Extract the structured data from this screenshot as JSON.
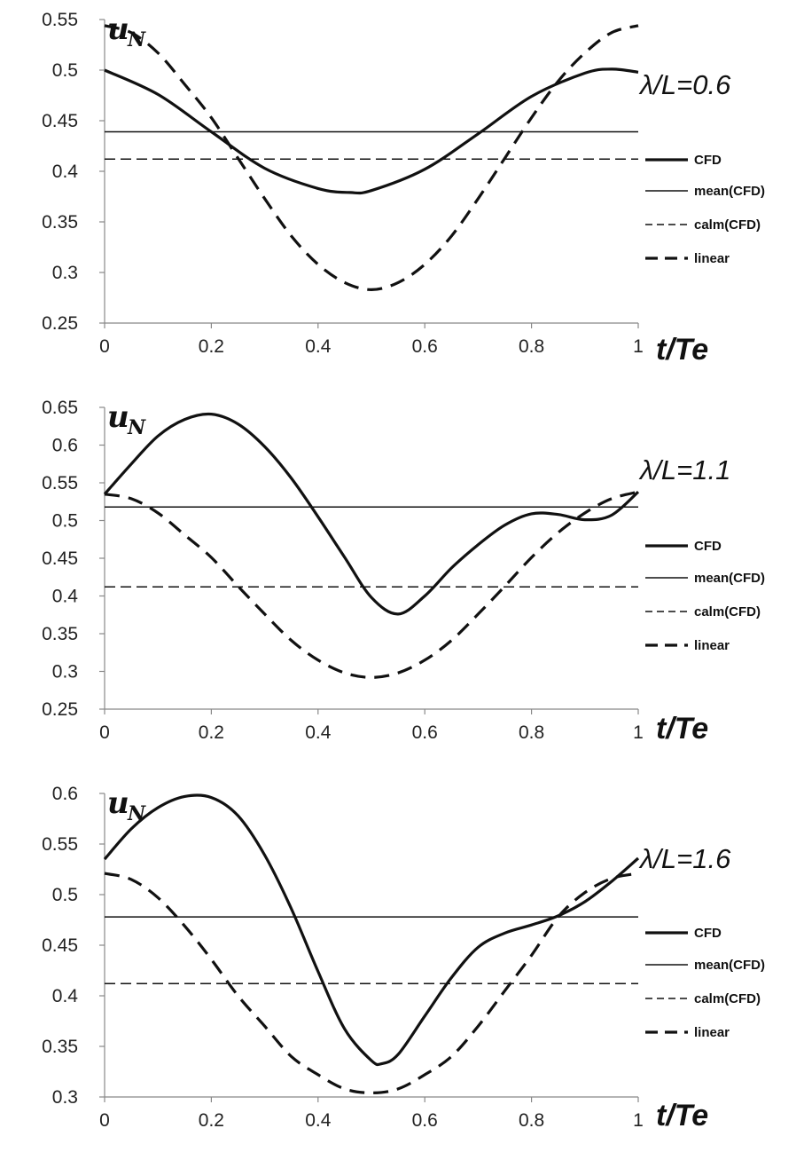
{
  "chart_data": [
    {
      "type": "line",
      "ylabel": "u",
      "ylabel_sub": "N",
      "xlabel": "t/Te",
      "annotation": "λ/L=0.6",
      "xlim": [
        0,
        1
      ],
      "ylim": [
        0.25,
        0.55
      ],
      "xticks": [
        "0",
        "0.2",
        "0.4",
        "0.6",
        "0.8",
        "1"
      ],
      "yticks": [
        "0.25",
        "0.3",
        "0.35",
        "0.4",
        "0.45",
        "0.5",
        "0.55"
      ],
      "grid": false,
      "legend_position": "right",
      "series": [
        {
          "name": "CFD",
          "style": "thick-solid",
          "x": [
            0,
            0.1,
            0.2,
            0.3,
            0.4,
            0.46,
            0.5,
            0.6,
            0.7,
            0.8,
            0.9,
            0.95,
            1.0
          ],
          "y": [
            0.5,
            0.476,
            0.439,
            0.403,
            0.383,
            0.379,
            0.381,
            0.402,
            0.437,
            0.474,
            0.497,
            0.501,
            0.498
          ]
        },
        {
          "name": "mean(CFD)",
          "style": "thin-solid",
          "x": [
            0,
            1
          ],
          "y": [
            0.439,
            0.439
          ]
        },
        {
          "name": "calm(CFD)",
          "style": "thin-dashed",
          "x": [
            0,
            1
          ],
          "y": [
            0.412,
            0.412
          ]
        },
        {
          "name": "linear",
          "style": "thick-dashed",
          "x": [
            0,
            0.05,
            0.1,
            0.15,
            0.2,
            0.25,
            0.3,
            0.35,
            0.4,
            0.45,
            0.5,
            0.55,
            0.6,
            0.65,
            0.7,
            0.75,
            0.8,
            0.85,
            0.9,
            0.95,
            1.0
          ],
          "y": [
            0.544,
            0.537,
            0.517,
            0.486,
            0.453,
            0.413,
            0.373,
            0.336,
            0.308,
            0.29,
            0.283,
            0.29,
            0.308,
            0.336,
            0.373,
            0.413,
            0.453,
            0.489,
            0.517,
            0.537,
            0.544
          ]
        }
      ]
    },
    {
      "type": "line",
      "ylabel": "u",
      "ylabel_sub": "N",
      "xlabel": "t/Te",
      "annotation": "λ/L=1.1",
      "xlim": [
        0,
        1
      ],
      "ylim": [
        0.25,
        0.65
      ],
      "xticks": [
        "0",
        "0.2",
        "0.4",
        "0.6",
        "0.8",
        "1"
      ],
      "yticks": [
        "0.25",
        "0.3",
        "0.35",
        "0.4",
        "0.45",
        "0.5",
        "0.55",
        "0.6",
        "0.65"
      ],
      "grid": false,
      "legend_position": "right",
      "series": [
        {
          "name": "CFD",
          "style": "thick-solid",
          "x": [
            0,
            0.05,
            0.1,
            0.15,
            0.2,
            0.25,
            0.3,
            0.35,
            0.4,
            0.45,
            0.5,
            0.55,
            0.6,
            0.65,
            0.7,
            0.75,
            0.8,
            0.85,
            0.9,
            0.95,
            1.0
          ],
          "y": [
            0.535,
            0.575,
            0.612,
            0.634,
            0.641,
            0.628,
            0.598,
            0.556,
            0.505,
            0.451,
            0.398,
            0.376,
            0.4,
            0.437,
            0.468,
            0.494,
            0.509,
            0.508,
            0.501,
            0.507,
            0.538
          ]
        },
        {
          "name": "mean(CFD)",
          "style": "thin-solid",
          "x": [
            0,
            1
          ],
          "y": [
            0.518,
            0.518
          ]
        },
        {
          "name": "calm(CFD)",
          "style": "thin-dashed",
          "x": [
            0,
            1
          ],
          "y": [
            0.412,
            0.412
          ]
        },
        {
          "name": "linear",
          "style": "thick-dashed",
          "x": [
            0,
            0.05,
            0.1,
            0.15,
            0.2,
            0.25,
            0.3,
            0.35,
            0.4,
            0.45,
            0.5,
            0.55,
            0.6,
            0.65,
            0.7,
            0.75,
            0.8,
            0.85,
            0.9,
            0.95,
            1.0
          ],
          "y": [
            0.535,
            0.529,
            0.51,
            0.481,
            0.451,
            0.413,
            0.376,
            0.341,
            0.315,
            0.298,
            0.292,
            0.298,
            0.315,
            0.341,
            0.376,
            0.413,
            0.451,
            0.484,
            0.51,
            0.529,
            0.538
          ]
        }
      ]
    },
    {
      "type": "line",
      "ylabel": "u",
      "ylabel_sub": "N",
      "xlabel": "t/Te",
      "annotation": "λ/L=1.6",
      "xlim": [
        0,
        1
      ],
      "ylim": [
        0.3,
        0.6
      ],
      "xticks": [
        "0",
        "0.2",
        "0.4",
        "0.6",
        "0.8",
        "1"
      ],
      "yticks": [
        "0.3",
        "0.35",
        "0.4",
        "0.45",
        "0.5",
        "0.55",
        "0.6"
      ],
      "grid": false,
      "legend_position": "right",
      "series": [
        {
          "name": "CFD",
          "style": "thick-solid",
          "x": [
            0,
            0.05,
            0.1,
            0.15,
            0.2,
            0.25,
            0.3,
            0.35,
            0.4,
            0.45,
            0.5,
            0.52,
            0.55,
            0.6,
            0.65,
            0.7,
            0.75,
            0.8,
            0.85,
            0.9,
            0.95,
            1.0
          ],
          "y": [
            0.535,
            0.565,
            0.586,
            0.597,
            0.596,
            0.578,
            0.539,
            0.486,
            0.424,
            0.367,
            0.336,
            0.333,
            0.342,
            0.38,
            0.418,
            0.448,
            0.462,
            0.47,
            0.479,
            0.493,
            0.513,
            0.536
          ]
        },
        {
          "name": "mean(CFD)",
          "style": "thin-solid",
          "x": [
            0,
            1
          ],
          "y": [
            0.478,
            0.478
          ]
        },
        {
          "name": "calm(CFD)",
          "style": "thin-dashed",
          "x": [
            0,
            1
          ],
          "y": [
            0.412,
            0.412
          ]
        },
        {
          "name": "linear",
          "style": "thick-dashed",
          "x": [
            0,
            0.05,
            0.1,
            0.15,
            0.2,
            0.25,
            0.3,
            0.35,
            0.4,
            0.45,
            0.5,
            0.55,
            0.6,
            0.65,
            0.7,
            0.75,
            0.8,
            0.85,
            0.9,
            0.95,
            1.0
          ],
          "y": [
            0.521,
            0.515,
            0.497,
            0.469,
            0.436,
            0.4,
            0.37,
            0.34,
            0.322,
            0.308,
            0.304,
            0.308,
            0.322,
            0.34,
            0.37,
            0.405,
            0.44,
            0.478,
            0.502,
            0.516,
            0.521
          ]
        }
      ]
    }
  ]
}
